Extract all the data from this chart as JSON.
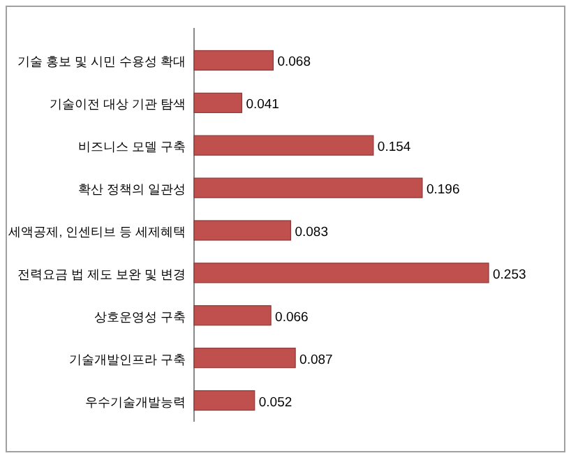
{
  "chart_data": {
    "type": "bar",
    "orientation": "horizontal",
    "data_labels": true,
    "categories": [
      "기술 홍보 및 시민 수용성 확대",
      "기술이전 대상 기관 탐색",
      "비즈니스 모델 구축",
      "확산 정책의 일관성",
      "세액공제, 인센티브 등 세제혜택",
      "전력요금 법 제도 보완 및 변경",
      "상호운영성 구축",
      "기술개발인프라 구축",
      "우수기술개발능력"
    ],
    "values": [
      0.068,
      0.041,
      0.154,
      0.196,
      0.083,
      0.253,
      0.066,
      0.087,
      0.052
    ],
    "color": "#c0504d"
  }
}
